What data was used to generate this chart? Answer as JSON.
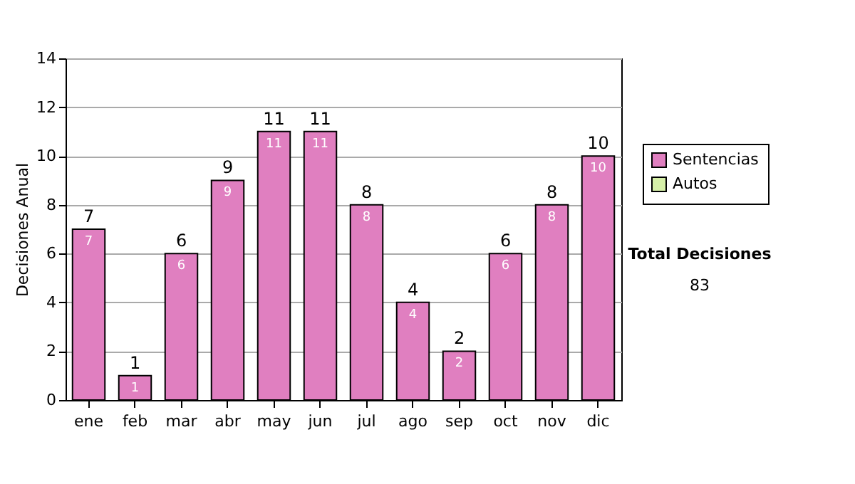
{
  "chart_data": {
    "type": "bar",
    "stacked": true,
    "ylabel": "Decisiones Anual",
    "categories": [
      "ene",
      "feb",
      "mar",
      "abr",
      "may",
      "jun",
      "jul",
      "ago",
      "sep",
      "oct",
      "nov",
      "dic"
    ],
    "series": [
      {
        "name": "Sentencias",
        "color": "#e07fc0",
        "values": [
          7,
          1,
          6,
          9,
          11,
          11,
          8,
          4,
          2,
          6,
          8,
          10
        ],
        "value_labels": [
          "7",
          "1",
          "6",
          "9",
          "11",
          "11",
          "8",
          "4",
          "2",
          "6",
          "8",
          "10"
        ]
      },
      {
        "name": "Autos",
        "color": "#d6f0a8",
        "values": [
          null,
          null,
          null,
          null,
          null,
          null,
          null,
          null,
          null,
          null,
          null,
          null
        ]
      }
    ],
    "totals": [
      "7",
      "1",
      "6",
      "9",
      "11",
      "11",
      "8",
      "4",
      "2",
      "6",
      "8",
      "10"
    ],
    "ylim": [
      0,
      14
    ],
    "yticks": [
      0,
      2,
      4,
      6,
      8,
      10,
      12,
      14
    ],
    "grid": "y",
    "legend": "right",
    "annotations": [
      "Total Decisiones",
      "83"
    ]
  }
}
